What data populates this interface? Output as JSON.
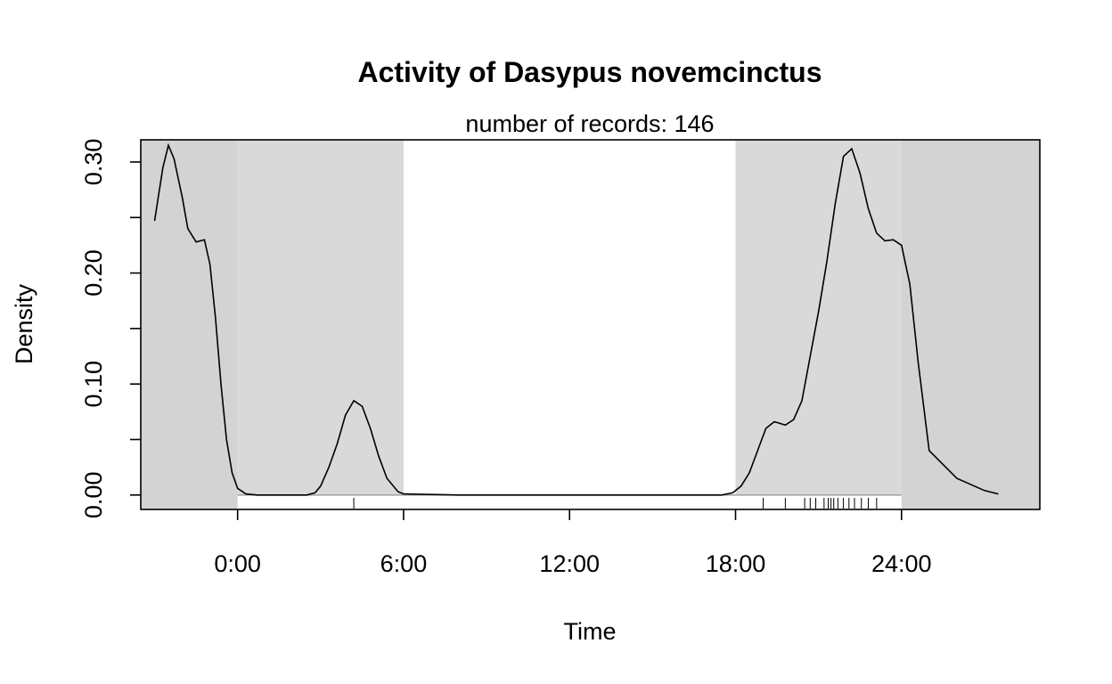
{
  "chart_data": {
    "type": "line",
    "title": "Activity of Dasypus novemcinctus",
    "subtitle": "number of records: 146",
    "xlabel": "Time",
    "ylabel": "Density",
    "xlim": [
      -3.5,
      29
    ],
    "ylim": [
      -0.013,
      0.32
    ],
    "x_ticks": [
      {
        "value": 0,
        "label": "0:00"
      },
      {
        "value": 6,
        "label": "6:00"
      },
      {
        "value": 12,
        "label": "12:00"
      },
      {
        "value": 18,
        "label": "18:00"
      },
      {
        "value": 24,
        "label": "24:00"
      }
    ],
    "y_ticks": [
      {
        "value": 0.0,
        "label": "0.00"
      },
      {
        "value": 0.05,
        "label": ""
      },
      {
        "value": 0.1,
        "label": "0.10"
      },
      {
        "value": 0.15,
        "label": ""
      },
      {
        "value": 0.2,
        "label": "0.20"
      },
      {
        "value": 0.25,
        "label": ""
      },
      {
        "value": 0.3,
        "label": "0.30"
      }
    ],
    "night_shading": [
      {
        "from": -3.5,
        "to": 0,
        "color": "#d3d3d3"
      },
      {
        "from": 0,
        "to": 6,
        "color": "#d9d9d9"
      },
      {
        "from": 18,
        "to": 24,
        "color": "#d9d9d9"
      },
      {
        "from": 24,
        "to": 29,
        "color": "#d3d3d3"
      }
    ],
    "baseline_band": {
      "from": 0,
      "to": 24
    },
    "rug": [
      4.2,
      19.0,
      19.8,
      20.5,
      20.7,
      20.9,
      21.2,
      21.35,
      21.45,
      21.55,
      21.7,
      21.9,
      22.1,
      22.3,
      22.55,
      22.8,
      23.1
    ],
    "series": [
      {
        "x": [
          -3.0,
          -2.7,
          -2.5,
          -2.3,
          -2.0,
          -1.8,
          -1.5,
          -1.2,
          -1.0,
          -0.8,
          -0.6,
          -0.4,
          -0.2,
          0.0,
          0.3,
          0.7,
          1.0,
          1.5,
          2.0,
          2.5,
          2.8,
          3.0,
          3.3,
          3.6,
          3.9,
          4.2,
          4.5,
          4.8,
          5.1,
          5.4,
          5.8,
          6.0,
          8.0,
          10.0,
          12.0,
          14.0,
          16.0,
          17.5,
          17.9,
          18.2,
          18.5,
          18.8,
          19.1,
          19.4,
          19.8,
          20.1,
          20.4,
          20.7,
          21.0,
          21.3,
          21.6,
          21.9,
          22.2,
          22.5,
          22.8,
          23.1,
          23.4,
          23.7,
          24.0,
          24.3,
          24.6,
          25.0,
          26.0,
          27.0,
          27.5
        ],
        "y": [
          0.247,
          0.295,
          0.315,
          0.303,
          0.268,
          0.24,
          0.228,
          0.23,
          0.208,
          0.16,
          0.1,
          0.05,
          0.02,
          0.006,
          0.001,
          0.0,
          0.0,
          0.0,
          0.0,
          0.0,
          0.002,
          0.008,
          0.025,
          0.046,
          0.072,
          0.085,
          0.08,
          0.06,
          0.035,
          0.015,
          0.003,
          0.001,
          0.0,
          0.0,
          0.0,
          0.0,
          0.0,
          0.0,
          0.002,
          0.008,
          0.02,
          0.04,
          0.06,
          0.066,
          0.063,
          0.068,
          0.085,
          0.125,
          0.165,
          0.21,
          0.262,
          0.305,
          0.312,
          0.29,
          0.258,
          0.236,
          0.229,
          0.23,
          0.225,
          0.19,
          0.12,
          0.04,
          0.015,
          0.004,
          0.001
        ]
      }
    ],
    "grid": false,
    "colors": {
      "line": "#000000",
      "axis": "#000000",
      "band": "#a6a6a6"
    }
  }
}
